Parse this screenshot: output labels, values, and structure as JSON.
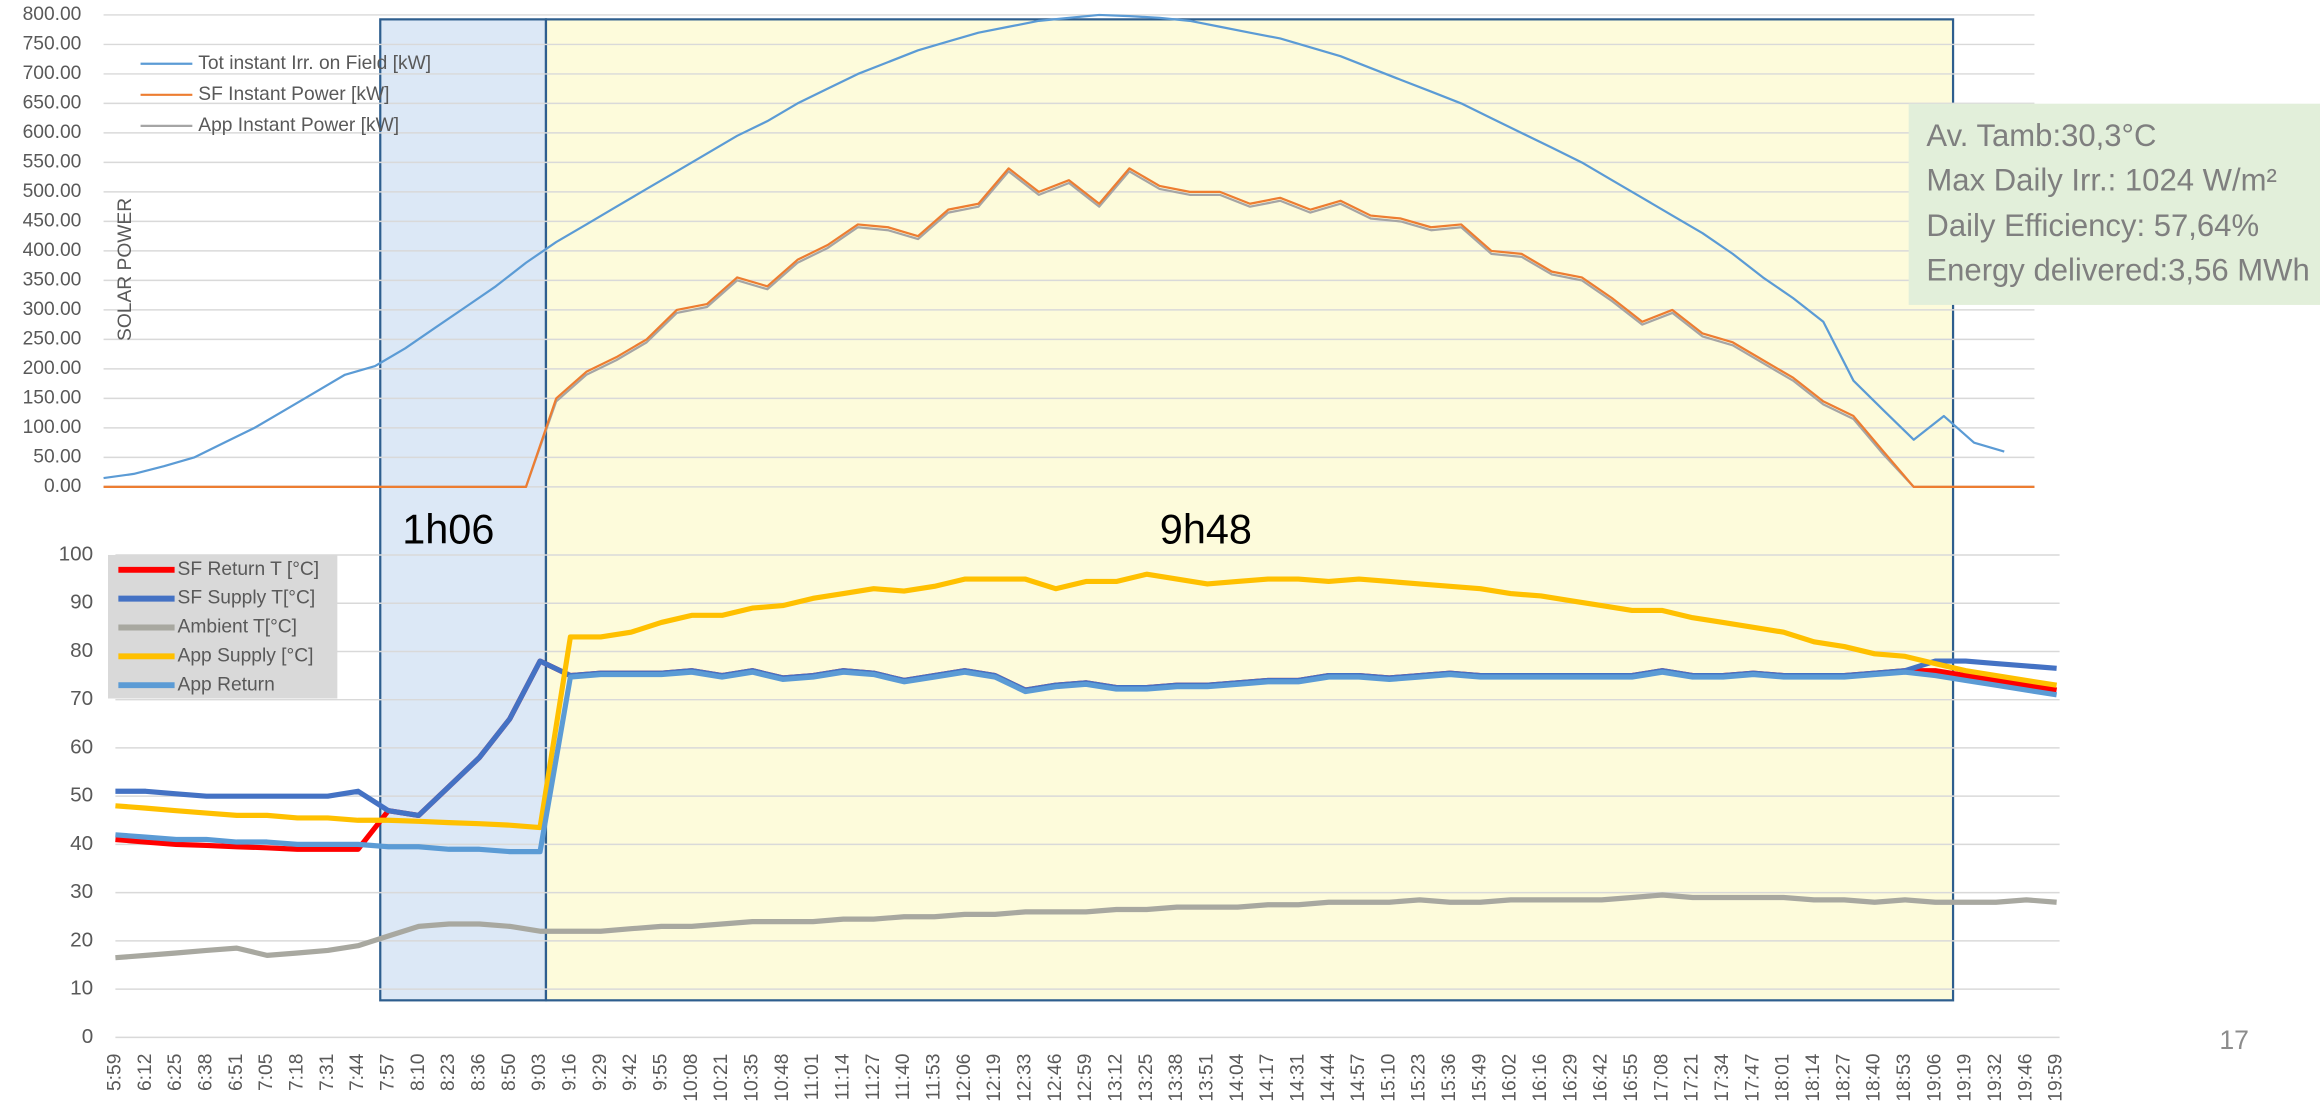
{
  "chart_data": [
    {
      "type": "line",
      "y_label": "SOLAR POWER",
      "legend": "top-left",
      "grid": true,
      "ylim": [
        0,
        800
      ],
      "yticks": [
        {
          "value": 0,
          "label": "0.00"
        },
        {
          "value": 50,
          "label": "50.00"
        },
        {
          "value": 100,
          "label": "100.00"
        },
        {
          "value": 150,
          "label": "150.00"
        },
        {
          "value": 200,
          "label": "200.00"
        },
        {
          "value": 250,
          "label": "250.00"
        },
        {
          "value": 300,
          "label": "300.00"
        },
        {
          "value": 350,
          "label": "350.00"
        },
        {
          "value": 400,
          "label": "400.00"
        },
        {
          "value": 450,
          "label": "450.00"
        },
        {
          "value": 500,
          "label": "500.00"
        },
        {
          "value": 550,
          "label": "550.00"
        },
        {
          "value": 600,
          "label": "600.00"
        },
        {
          "value": 650,
          "label": "650.00"
        },
        {
          "value": 700,
          "label": "700.00"
        },
        {
          "value": 750,
          "label": "750.00"
        },
        {
          "value": 800,
          "label": "800.00"
        }
      ],
      "series": [
        {
          "name": "Tot instant Irr. on Field [kW]",
          "color": "#5b9bd5",
          "values": [
            15,
            22,
            35,
            50,
            75,
            100,
            130,
            160,
            190,
            205,
            235,
            270,
            305,
            340,
            380,
            415,
            445,
            475,
            505,
            535,
            565,
            595,
            620,
            650,
            675,
            700,
            720,
            740,
            755,
            770,
            780,
            790,
            795,
            800,
            798,
            795,
            790,
            780,
            770,
            760,
            745,
            730,
            710,
            690,
            670,
            650,
            625,
            600,
            575,
            550,
            520,
            490,
            460,
            430,
            395,
            355,
            320,
            280,
            180,
            130,
            80,
            120,
            75,
            60,
            null
          ]
        },
        {
          "name": "SF Instant Power [kW]",
          "color": "#ed7d31",
          "values": [
            0,
            0,
            0,
            0,
            0,
            0,
            0,
            0,
            0,
            0,
            0,
            0,
            0,
            0,
            0,
            150,
            195,
            220,
            250,
            300,
            310,
            355,
            340,
            385,
            410,
            445,
            440,
            425,
            470,
            480,
            540,
            500,
            520,
            480,
            540,
            510,
            500,
            500,
            480,
            490,
            470,
            485,
            460,
            455,
            440,
            445,
            400,
            395,
            365,
            355,
            320,
            280,
            300,
            260,
            245,
            215,
            185,
            145,
            120,
            60,
            0,
            0,
            0,
            0,
            0
          ]
        },
        {
          "name": "App Instant Power [kW]",
          "color": "#a5a5a5",
          "values": [
            0,
            0,
            0,
            0,
            0,
            0,
            0,
            0,
            0,
            0,
            0,
            0,
            0,
            0,
            0,
            145,
            190,
            215,
            245,
            295,
            305,
            350,
            335,
            380,
            405,
            440,
            435,
            420,
            465,
            475,
            535,
            495,
            515,
            475,
            535,
            505,
            495,
            495,
            475,
            485,
            465,
            480,
            455,
            450,
            435,
            440,
            395,
            390,
            360,
            350,
            315,
            275,
            295,
            255,
            240,
            210,
            180,
            140,
            115,
            55,
            0,
            0,
            0,
            0,
            0
          ]
        }
      ],
      "annotations": [
        "Av. Tamb:30,3°C",
        "Max Daily Irr.: 1024 W/m²",
        "Daily Efficiency: 57,64%",
        "Energy delivered:3,56 MWh"
      ]
    },
    {
      "type": "line",
      "legend": "top-left",
      "grid": true,
      "categories": [
        "5:59",
        "6:12",
        "6:25",
        "6:38",
        "6:51",
        "7:05",
        "7:18",
        "7:31",
        "7:44",
        "7:57",
        "8:10",
        "8:23",
        "8:36",
        "8:50",
        "9:03",
        "9:16",
        "9:29",
        "9:42",
        "9:55",
        "10:08",
        "10:21",
        "10:35",
        "10:48",
        "11:01",
        "11:14",
        "11:27",
        "11:40",
        "11:53",
        "12:06",
        "12:19",
        "12:33",
        "12:46",
        "12:59",
        "13:12",
        "13:25",
        "13:38",
        "13:51",
        "14:04",
        "14:17",
        "14:31",
        "14:44",
        "14:57",
        "15:10",
        "15:23",
        "15:36",
        "15:49",
        "16:02",
        "16:16",
        "16:29",
        "16:42",
        "16:55",
        "17:08",
        "17:21",
        "17:34",
        "17:47",
        "18:01",
        "18:14",
        "18:27",
        "18:40",
        "18:53",
        "19:06",
        "19:19",
        "19:32",
        "19:46",
        "19:59"
      ],
      "ylim": [
        0,
        100
      ],
      "yticks": [
        0,
        10,
        20,
        30,
        40,
        50,
        60,
        70,
        80,
        90,
        100
      ],
      "series": [
        {
          "name": "SF Return T [°C]",
          "color": "#ff0000",
          "values": [
            41,
            40.5,
            40,
            39.8,
            39.5,
            39.3,
            39,
            39,
            39,
            47,
            46,
            52,
            58,
            66,
            78,
            75,
            75.5,
            75.5,
            75.5,
            76,
            75,
            76,
            74.5,
            75,
            76,
            75.5,
            74,
            75,
            76,
            75,
            72,
            73,
            73.5,
            72.5,
            72.5,
            73,
            73,
            73.5,
            74,
            74,
            75,
            75,
            74.5,
            75,
            75.5,
            75,
            75,
            75,
            75,
            75,
            75,
            76,
            75,
            75,
            75.5,
            75,
            75,
            75,
            75.5,
            76,
            76,
            75,
            74,
            73,
            72
          ]
        },
        {
          "name": "SF Supply T[°C]",
          "color": "#4472c4",
          "values": [
            51,
            51,
            50.5,
            50,
            50,
            50,
            50,
            50,
            51,
            47,
            46,
            52,
            58,
            66,
            78,
            75,
            75.5,
            75.5,
            75.5,
            76,
            75,
            76,
            74.5,
            75,
            76,
            75.5,
            74,
            75,
            76,
            75,
            72,
            73,
            73.5,
            72.5,
            72.5,
            73,
            73,
            73.5,
            74,
            74,
            75,
            75,
            74.5,
            75,
            75.5,
            75,
            75,
            75,
            75,
            75,
            75,
            76,
            75,
            75,
            75.5,
            75,
            75,
            75,
            75.5,
            76,
            78,
            78,
            77.5,
            77,
            76.5
          ]
        },
        {
          "name": "Ambient T[°C]",
          "color": "#a8a8a0",
          "values": [
            16.5,
            17,
            17.5,
            18,
            18.5,
            17,
            17.5,
            18,
            19,
            21,
            23,
            23.5,
            23.5,
            23,
            22,
            22,
            22,
            22.5,
            23,
            23,
            23.5,
            24,
            24,
            24,
            24.5,
            24.5,
            25,
            25,
            25.5,
            25.5,
            26,
            26,
            26,
            26.5,
            26.5,
            27,
            27,
            27,
            27.5,
            27.5,
            28,
            28,
            28,
            28.5,
            28,
            28,
            28.5,
            28.5,
            28.5,
            28.5,
            29,
            29.5,
            29,
            29,
            29,
            29,
            28.5,
            28.5,
            28,
            28.5,
            28,
            28,
            28,
            28.5,
            28
          ]
        },
        {
          "name": "App Supply [°C]",
          "color": "#ffc000",
          "values": [
            48,
            47.5,
            47,
            46.5,
            46,
            46,
            45.5,
            45.5,
            45,
            45,
            44.8,
            44.5,
            44.3,
            44,
            43.5,
            83,
            83,
            84,
            86,
            87.5,
            87.5,
            89,
            89.5,
            91,
            92,
            93,
            92.5,
            93.5,
            95,
            95,
            95,
            93,
            94.5,
            94.5,
            96,
            95,
            94,
            94.5,
            95,
            95,
            94.5,
            95,
            94.5,
            94,
            93.5,
            93,
            92,
            91.5,
            90.5,
            89.5,
            88.5,
            88.5,
            87,
            86,
            85,
            84,
            82,
            81,
            79.5,
            79,
            77.5,
            76,
            75,
            74,
            73
          ]
        },
        {
          "name": "App Return",
          "color": "#5b9bd5",
          "values": [
            42,
            41.5,
            41,
            41,
            40.5,
            40.5,
            40,
            40,
            40,
            39.5,
            39.5,
            39,
            39,
            38.5,
            38.5,
            74.7,
            75.2,
            75.2,
            75.2,
            75.7,
            74.7,
            75.7,
            74.2,
            74.7,
            75.7,
            75.2,
            73.7,
            74.7,
            75.7,
            74.7,
            71.7,
            72.7,
            73.2,
            72.2,
            72.2,
            72.7,
            72.7,
            73.2,
            73.7,
            73.7,
            74.7,
            74.7,
            74.2,
            74.7,
            75.2,
            74.7,
            74.7,
            74.7,
            74.7,
            74.7,
            74.7,
            75.7,
            74.7,
            74.7,
            75.2,
            74.7,
            74.7,
            74.7,
            75.2,
            75.7,
            75,
            74,
            73,
            72,
            71
          ]
        }
      ],
      "annotations": [
        "1h06",
        "9h48"
      ]
    }
  ],
  "page_number": "17"
}
